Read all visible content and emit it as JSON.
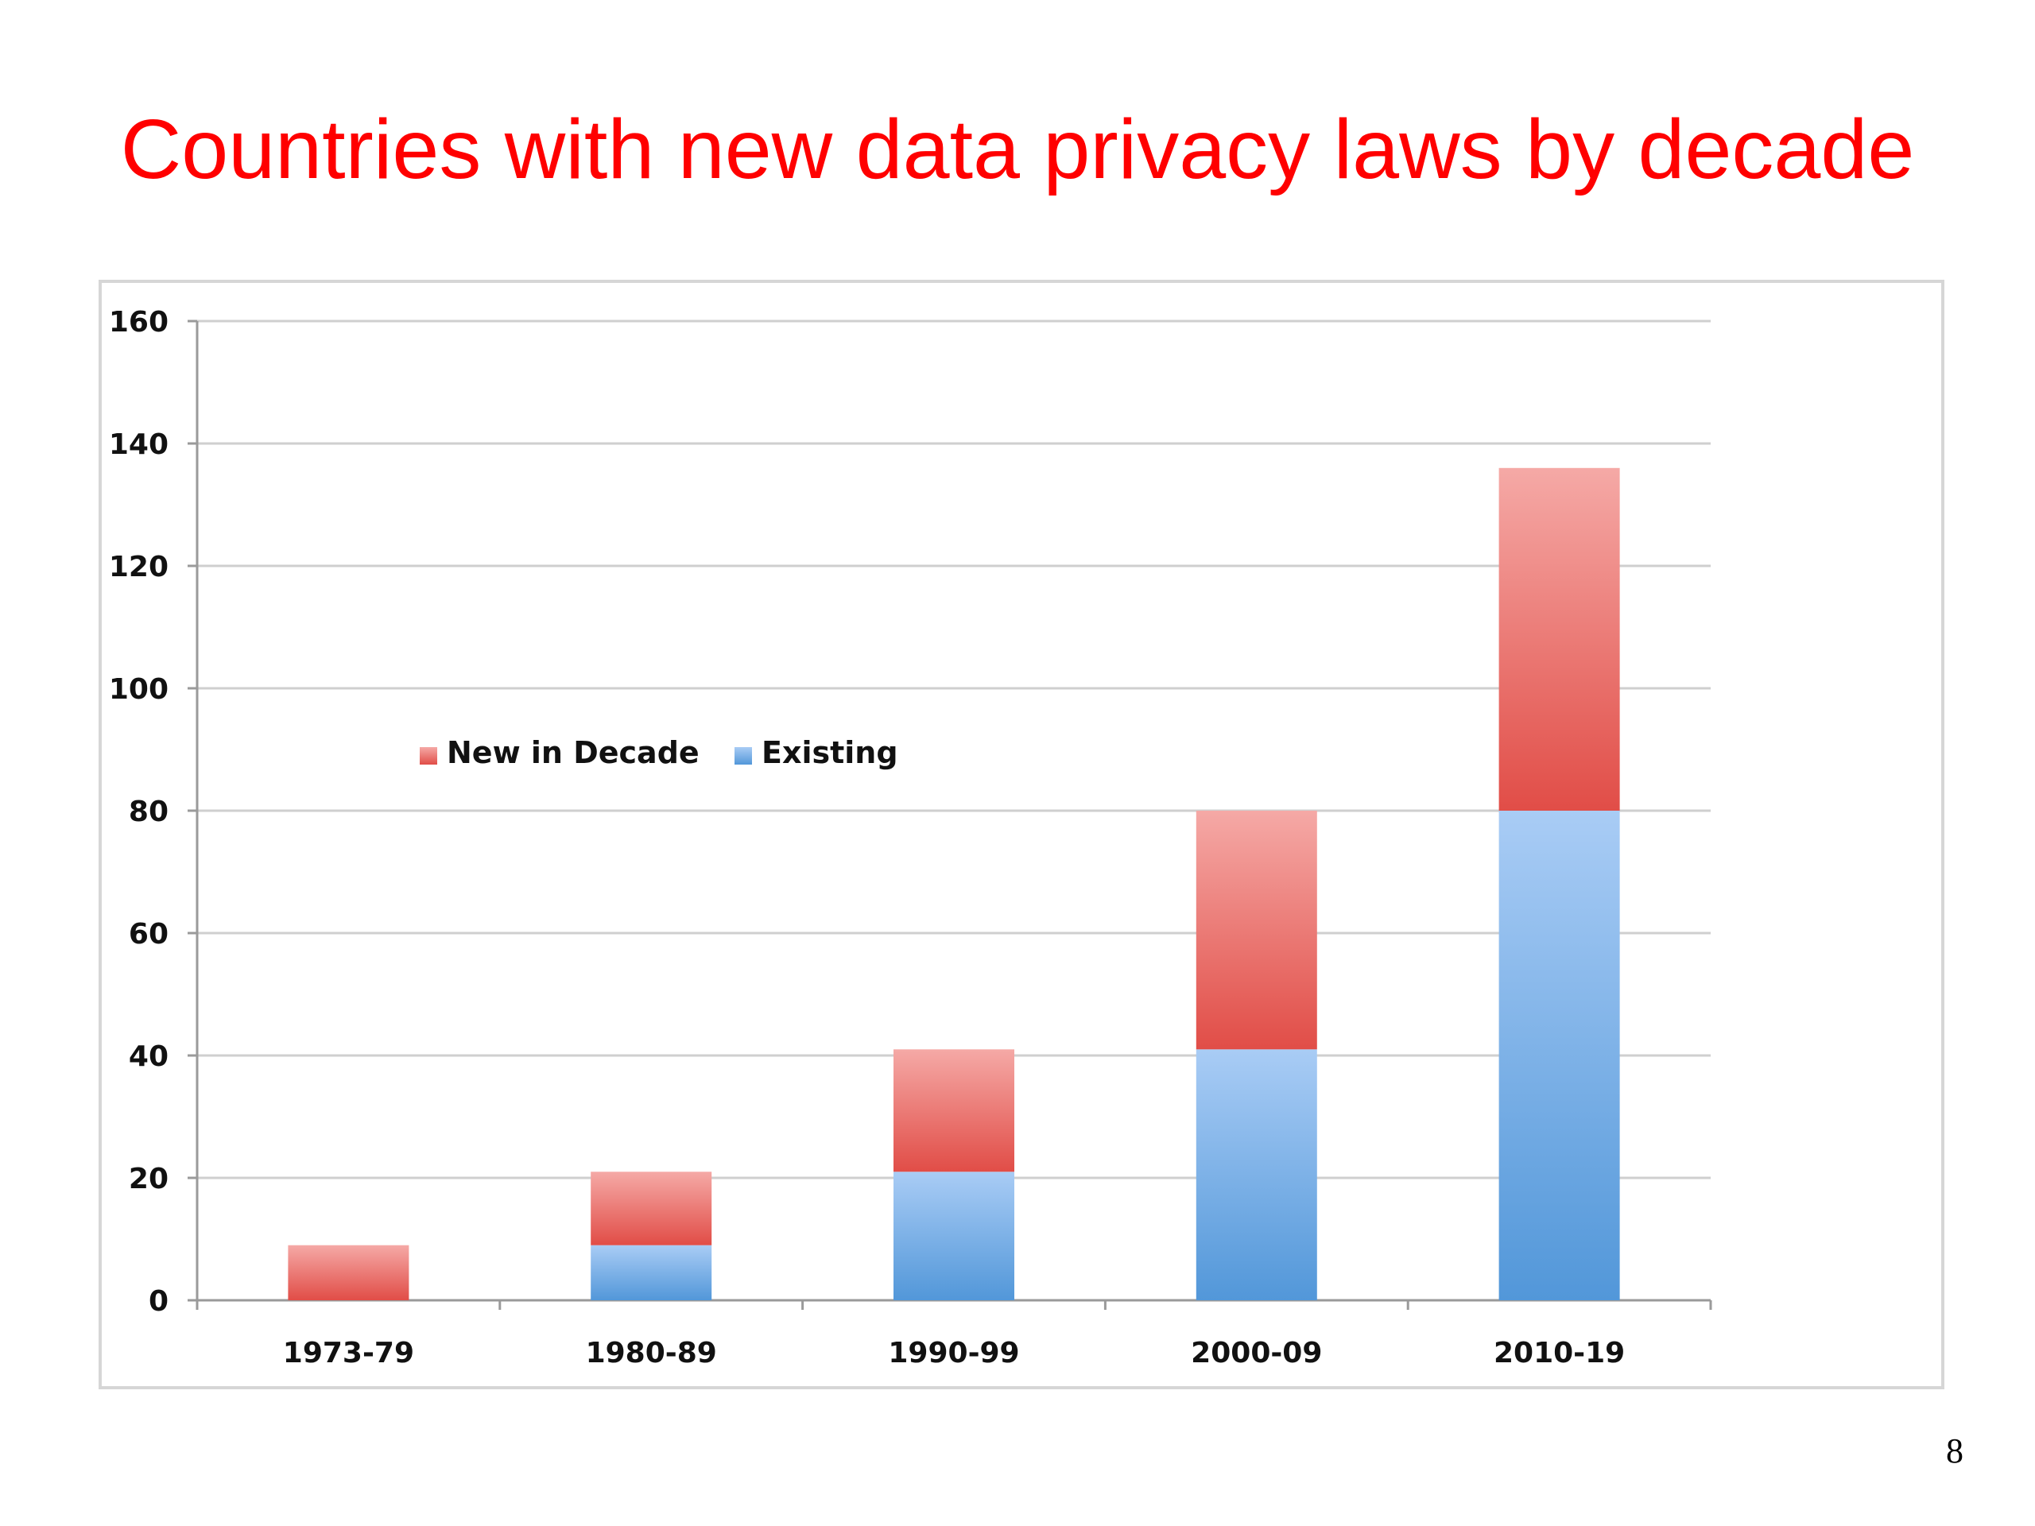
{
  "slide": {
    "title": "Countries with new data privacy laws by decade",
    "page_number": "8"
  },
  "chart_data": {
    "type": "bar",
    "stacked": true,
    "title": "",
    "xlabel": "",
    "ylabel": "",
    "categories": [
      "1973-79",
      "1980-89",
      "1990-99",
      "2000-09",
      "2010-19"
    ],
    "series": [
      {
        "name": "Existing",
        "values": [
          0,
          9,
          21,
          41,
          80
        ],
        "color": "#5b9bd5"
      },
      {
        "name": "New in Decade",
        "values": [
          9,
          12,
          20,
          39,
          56
        ],
        "color": "#e8605a"
      }
    ],
    "legend_order": [
      "New in Decade",
      "Existing"
    ],
    "legend_position": "upper-left inside plot",
    "ylim": [
      0,
      160
    ],
    "yticks": [
      0,
      20,
      40,
      60,
      80,
      100,
      120,
      140,
      160
    ],
    "grid": true
  }
}
